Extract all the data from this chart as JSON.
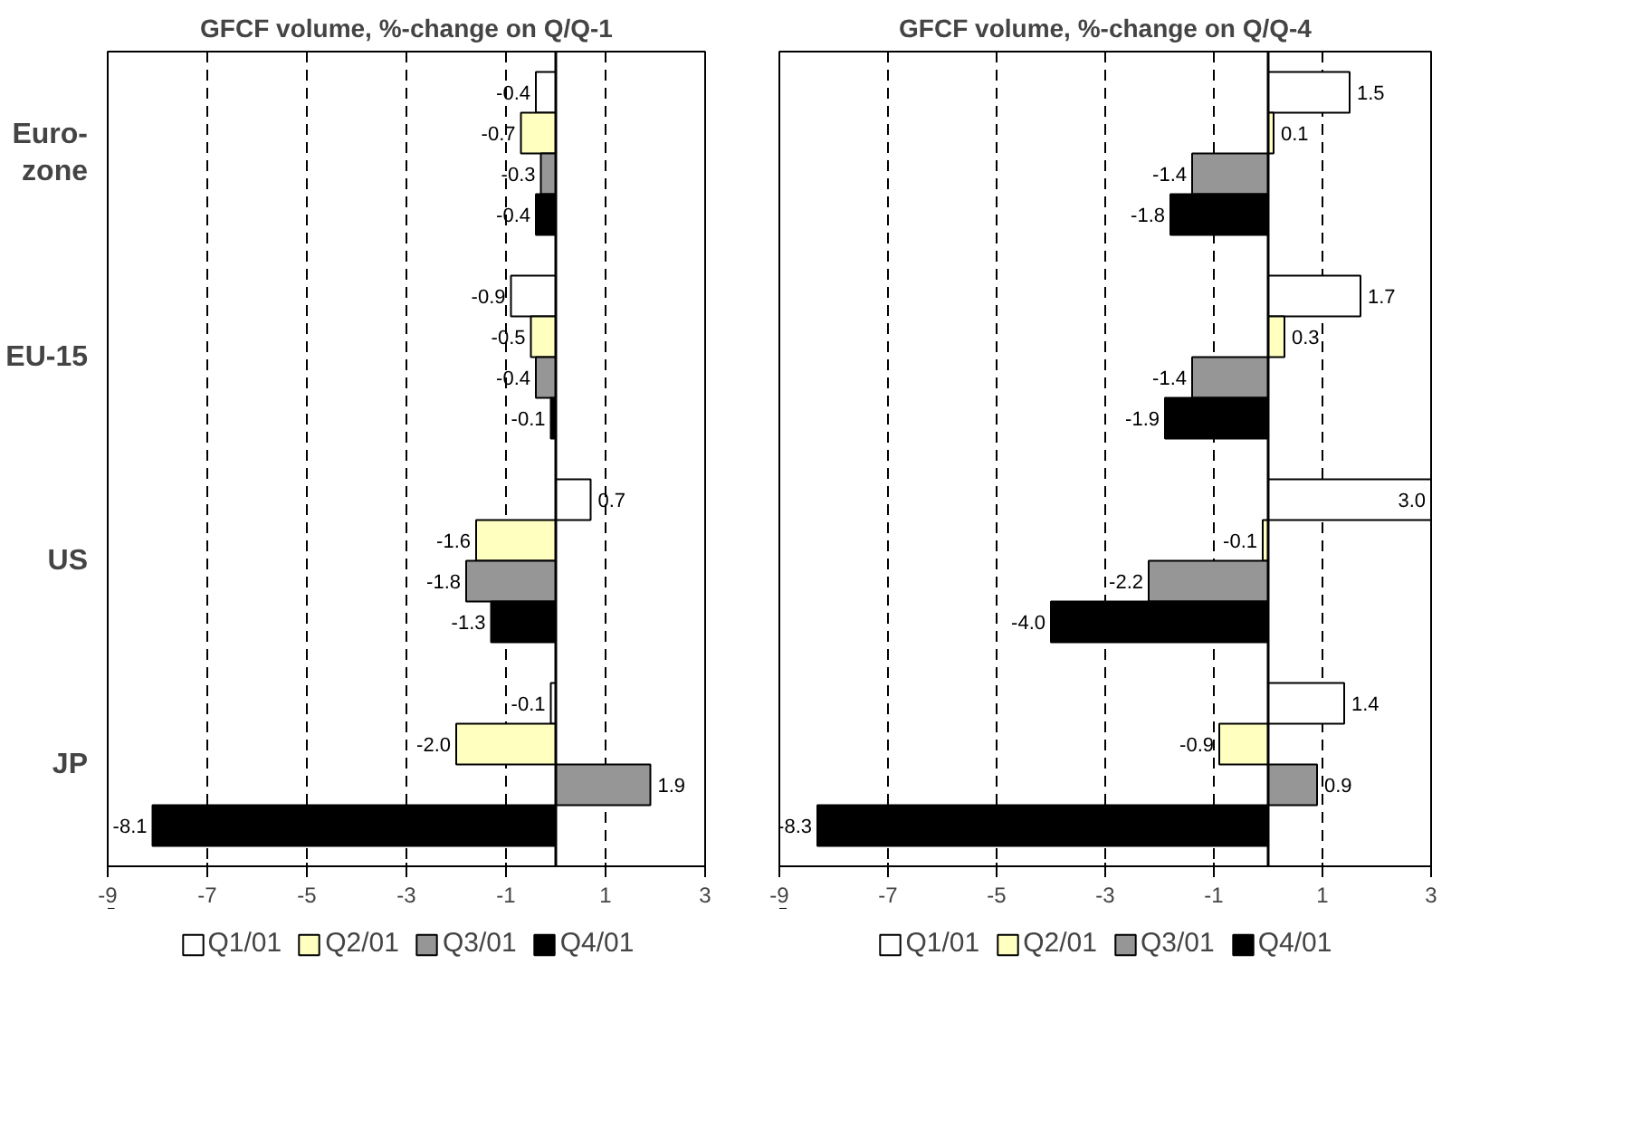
{
  "chart_data": [
    {
      "type": "bar",
      "orientation": "horizontal",
      "title": "GFCF volume, %-change on Q/Q-1",
      "categories": [
        "Euro-\nzone",
        "EU-15",
        "US",
        "JP"
      ],
      "series": [
        {
          "name": "Q1/01",
          "color": "#ffffff",
          "values": [
            -0.4,
            -0.9,
            0.7,
            -0.1
          ]
        },
        {
          "name": "Q2/01",
          "color": "#ffffc0",
          "values": [
            -0.7,
            -0.5,
            -1.6,
            -2.0
          ],
          "value_labels": [
            "-0.7",
            "-0.5",
            "-1.6",
            "-2.0"
          ]
        },
        {
          "name": "Q3/01",
          "color": "#969696",
          "values": [
            -0.3,
            -0.4,
            -1.8,
            1.9
          ]
        },
        {
          "name": "Q4/01",
          "color": "#000000",
          "values": [
            -0.4,
            -0.1,
            -1.3,
            -8.1
          ]
        }
      ],
      "xlim": [
        -9,
        3
      ],
      "xticks": [
        -9,
        -7,
        -5,
        -3,
        -1,
        1,
        3
      ],
      "grid": "x",
      "line_style": "dashed",
      "ref_lines": [
        {
          "axis": "x",
          "value": 0
        }
      ],
      "data_labels": true,
      "legend": "bottom"
    },
    {
      "type": "bar",
      "orientation": "horizontal",
      "title": "GFCF volume, %-change on Q/Q-4",
      "categories": [
        null,
        null,
        null,
        null
      ],
      "series": [
        {
          "name": "Q1/01",
          "color": "#ffffff",
          "values": [
            1.5,
            1.7,
            3.0,
            1.4
          ],
          "value_labels": [
            "1.5",
            "1.7",
            "3.0",
            "1.4"
          ]
        },
        {
          "name": "Q2/01",
          "color": "#ffffc0",
          "values": [
            0.1,
            0.3,
            -0.1,
            -0.9
          ]
        },
        {
          "name": "Q3/01",
          "color": "#969696",
          "values": [
            -1.4,
            -1.4,
            -2.2,
            0.9
          ]
        },
        {
          "name": "Q4/01",
          "color": "#000000",
          "values": [
            -1.8,
            -1.9,
            -4.0,
            -8.3
          ],
          "value_labels": [
            "-1.8",
            "-1.9",
            "-4.0",
            "-8.3"
          ]
        }
      ],
      "xlim": [
        -9,
        3
      ],
      "xticks": [
        -9,
        -7,
        -5,
        -3,
        -1,
        1,
        3
      ],
      "grid": "x",
      "line_style": "dashed",
      "ref_lines": [
        {
          "axis": "x",
          "value": 0
        }
      ],
      "data_labels": true,
      "legend": "bottom"
    }
  ]
}
